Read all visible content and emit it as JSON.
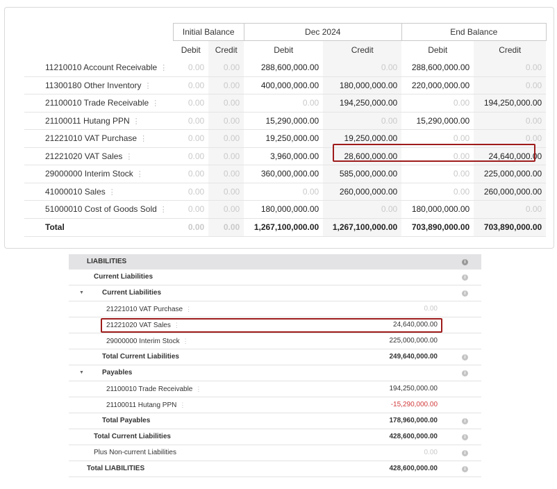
{
  "trial_balance": {
    "groups": [
      "Initial Balance",
      "Dec 2024",
      "End Balance"
    ],
    "subheaders": [
      "Debit",
      "Credit",
      "Debit",
      "Credit",
      "Debit",
      "Credit"
    ],
    "rows": [
      {
        "account": "11210010 Account Receivable",
        "init_debit": "0.00",
        "init_credit": "0.00",
        "dec_debit": "288,600,000.00",
        "dec_credit": "0.00",
        "end_debit": "288,600,000.00",
        "end_credit": "0.00"
      },
      {
        "account": "11300180 Other Inventory",
        "init_debit": "0.00",
        "init_credit": "0.00",
        "dec_debit": "400,000,000.00",
        "dec_credit": "180,000,000.00",
        "end_debit": "220,000,000.00",
        "end_credit": "0.00"
      },
      {
        "account": "21100010 Trade Receivable",
        "init_debit": "0.00",
        "init_credit": "0.00",
        "dec_debit": "0.00",
        "dec_credit": "194,250,000.00",
        "end_debit": "0.00",
        "end_credit": "194,250,000.00"
      },
      {
        "account": "21100011 Hutang PPN",
        "init_debit": "0.00",
        "init_credit": "0.00",
        "dec_debit": "15,290,000.00",
        "dec_credit": "0.00",
        "end_debit": "15,290,000.00",
        "end_credit": "0.00"
      },
      {
        "account": "21221010 VAT Purchase",
        "init_debit": "0.00",
        "init_credit": "0.00",
        "dec_debit": "19,250,000.00",
        "dec_credit": "19,250,000.00",
        "end_debit": "0.00",
        "end_credit": "0.00"
      },
      {
        "account": "21221020 VAT Sales",
        "init_debit": "0.00",
        "init_credit": "0.00",
        "dec_debit": "3,960,000.00",
        "dec_credit": "28,600,000.00",
        "end_debit": "0.00",
        "end_credit": "24,640,000.00"
      },
      {
        "account": "29000000 Interim Stock",
        "init_debit": "0.00",
        "init_credit": "0.00",
        "dec_debit": "360,000,000.00",
        "dec_credit": "585,000,000.00",
        "end_debit": "0.00",
        "end_credit": "225,000,000.00"
      },
      {
        "account": "41000010 Sales",
        "init_debit": "0.00",
        "init_credit": "0.00",
        "dec_debit": "0.00",
        "dec_credit": "260,000,000.00",
        "end_debit": "0.00",
        "end_credit": "260,000,000.00"
      },
      {
        "account": "51000010 Cost of Goods Sold",
        "init_debit": "0.00",
        "init_credit": "0.00",
        "dec_debit": "180,000,000.00",
        "dec_credit": "0.00",
        "end_debit": "180,000,000.00",
        "end_credit": "0.00"
      }
    ],
    "total": {
      "label": "Total",
      "init_debit": "0.00",
      "init_credit": "0.00",
      "dec_debit": "1,267,100,000.00",
      "dec_credit": "1,267,100,000.00",
      "end_debit": "703,890,000.00",
      "end_credit": "703,890,000.00"
    }
  },
  "balance_sheet": {
    "header": "LIABILITIES",
    "rows": [
      {
        "label": "Current Liabilities",
        "value": ""
      },
      {
        "label": "Current Liabilities",
        "value": ""
      },
      {
        "label": "21221010 VAT Purchase",
        "value": "0.00"
      },
      {
        "label": "21221020 VAT Sales",
        "value": "24,640,000.00"
      },
      {
        "label": "29000000 Interim Stock",
        "value": "225,000,000.00"
      },
      {
        "label": "Total Current Liabilities",
        "value": "249,640,000.00"
      },
      {
        "label": "Payables",
        "value": ""
      },
      {
        "label": "21100010 Trade Receivable",
        "value": "194,250,000.00"
      },
      {
        "label": "21100011 Hutang PPN",
        "value": "-15,290,000.00"
      },
      {
        "label": "Total Payables",
        "value": "178,960,000.00"
      },
      {
        "label": "Total Current Liabilities",
        "value": "428,600,000.00"
      },
      {
        "label": "Plus Non-current Liabilities",
        "value": "0.00"
      },
      {
        "label": "Total LIABILITIES",
        "value": "428,600,000.00"
      }
    ]
  },
  "colors": {
    "highlight": "#9e1b1b",
    "negative": "#d23a3a",
    "muted": "#c9c9c9"
  },
  "icons": {
    "info": "info-icon",
    "kebab": "kebab-menu-icon",
    "caret": "caret-down-icon"
  }
}
